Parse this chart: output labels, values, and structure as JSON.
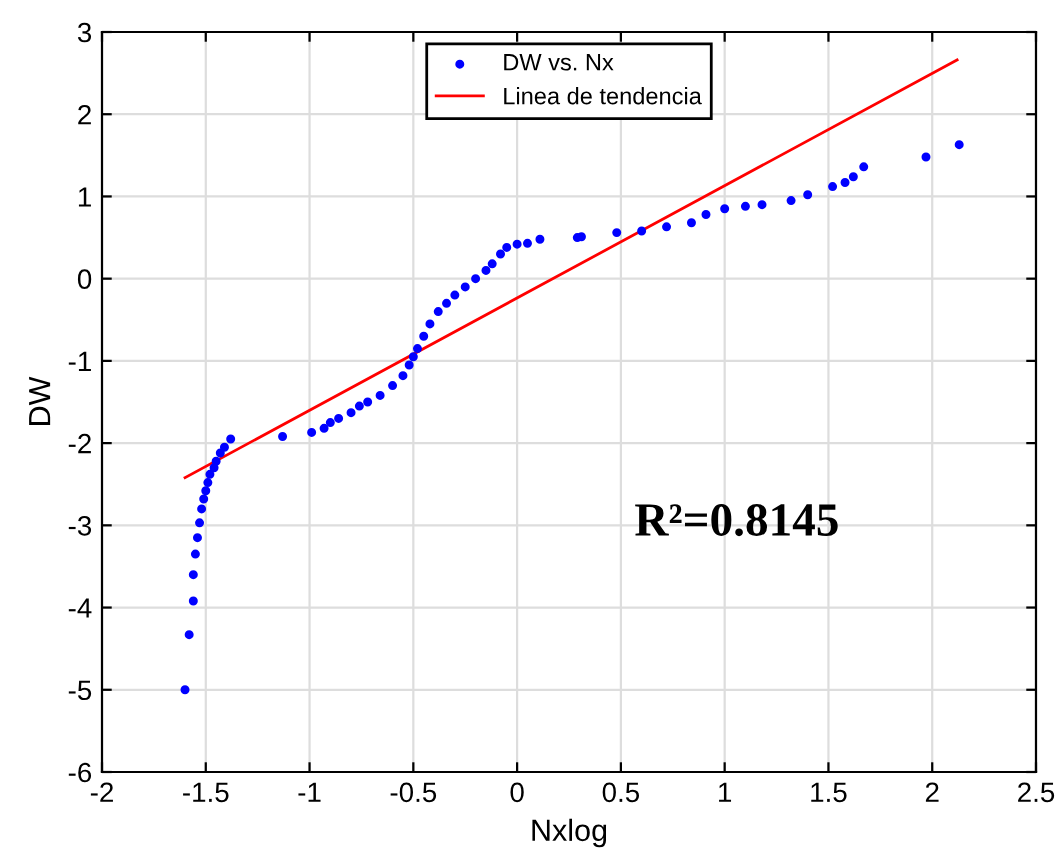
{
  "chart_data": {
    "type": "scatter",
    "xlabel": "Nxlog",
    "ylabel": "DW",
    "xlim": [
      -2,
      2.5
    ],
    "ylim": [
      -6,
      3
    ],
    "xticks": [
      -2,
      -1.5,
      -1,
      -0.5,
      0,
      0.5,
      1,
      1.5,
      2,
      2.5
    ],
    "yticks": [
      -6,
      -5,
      -4,
      -3,
      -2,
      -1,
      0,
      1,
      2,
      3
    ],
    "grid": true,
    "legend": "top",
    "series": [
      {
        "name": "DW vs. Nx",
        "color": "#0000ff",
        "marker": "circle",
        "x": [
          -1.6,
          -1.58,
          -1.56,
          -1.56,
          -1.55,
          -1.54,
          -1.53,
          -1.52,
          -1.51,
          -1.5,
          -1.49,
          -1.48,
          -1.46,
          -1.45,
          -1.43,
          -1.41,
          -1.38,
          -1.13,
          -0.99,
          -0.93,
          -0.9,
          -0.86,
          -0.8,
          -0.76,
          -0.72,
          -0.66,
          -0.6,
          -0.55,
          -0.52,
          -0.5,
          -0.48,
          -0.45,
          -0.42,
          -0.38,
          -0.34,
          -0.3,
          -0.25,
          -0.2,
          -0.15,
          -0.12,
          -0.08,
          -0.05,
          0.0,
          0.05,
          0.11,
          0.29,
          0.31,
          0.48,
          0.6,
          0.72,
          0.84,
          0.91,
          1.0,
          1.1,
          1.18,
          1.32,
          1.4,
          1.52,
          1.58,
          1.62,
          1.67,
          1.97,
          2.13
        ],
        "values": [
          -5.0,
          -4.33,
          -3.92,
          -3.6,
          -3.35,
          -3.15,
          -2.97,
          -2.8,
          -2.68,
          -2.58,
          -2.48,
          -2.38,
          -2.3,
          -2.22,
          -2.12,
          -2.05,
          -1.95,
          -1.92,
          -1.87,
          -1.82,
          -1.75,
          -1.7,
          -1.63,
          -1.55,
          -1.5,
          -1.42,
          -1.3,
          -1.18,
          -1.05,
          -0.95,
          -0.85,
          -0.7,
          -0.55,
          -0.4,
          -0.3,
          -0.2,
          -0.1,
          0.0,
          0.1,
          0.18,
          0.3,
          0.38,
          0.42,
          0.43,
          0.48,
          0.5,
          0.51,
          0.56,
          0.58,
          0.63,
          0.68,
          0.78,
          0.85,
          0.88,
          0.9,
          0.95,
          1.02,
          1.12,
          1.17,
          1.24,
          1.36,
          1.48,
          1.63
        ]
      },
      {
        "name": "Linea de tendencia",
        "type": "line",
        "color": "#ff0000",
        "x": [
          -1.6,
          2.12
        ],
        "values": [
          -2.42,
          2.66
        ]
      }
    ],
    "annotations": [
      "R²=0.8145"
    ]
  }
}
